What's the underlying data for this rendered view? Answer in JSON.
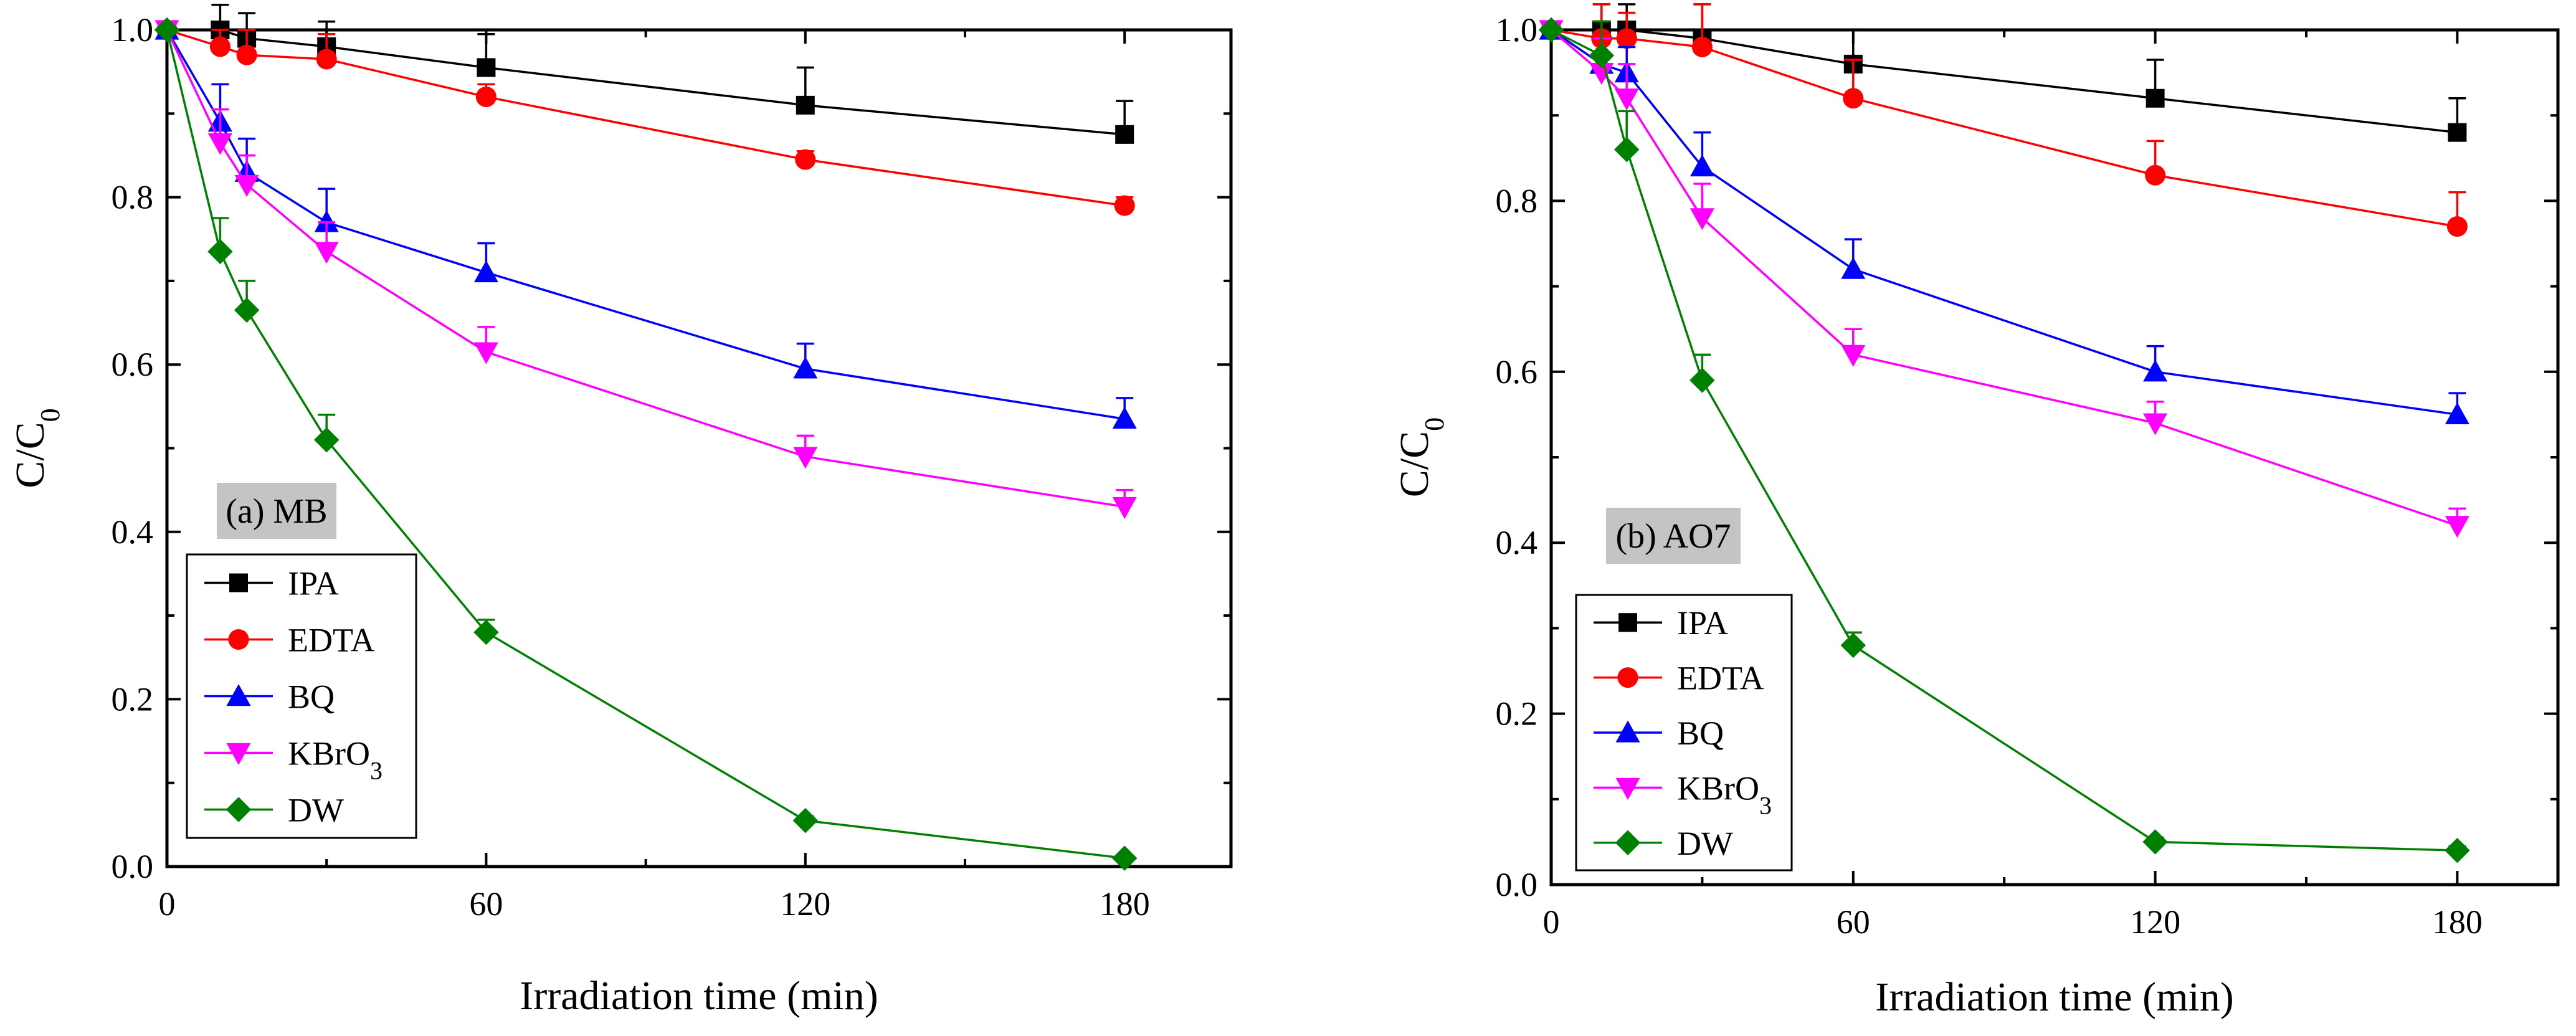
{
  "chart_data": [
    {
      "type": "line",
      "panel_label": "(a) MB",
      "xlabel": "Irradiation time (min)",
      "ylabel": "C/C",
      "ylabel_subscript": "0",
      "xlim": [
        0,
        200
      ],
      "ylim": [
        0,
        1.0
      ],
      "xticks": [
        0,
        60,
        120,
        180
      ],
      "yticks": [
        0.0,
        0.2,
        0.4,
        0.6,
        0.8,
        1.0
      ],
      "xtick_labels": [
        "0",
        "60",
        "120",
        "180"
      ],
      "ytick_labels": [
        "0.0",
        "0.2",
        "0.4",
        "0.6",
        "0.8",
        "1.0"
      ],
      "legend_position": "bottom-left",
      "x": [
        0,
        10,
        15,
        30,
        60,
        120,
        180
      ],
      "series": [
        {
          "name": "IPA",
          "color": "#000000",
          "marker": "square",
          "values": [
            1.0,
            1.0,
            0.99,
            0.98,
            0.955,
            0.91,
            0.875
          ],
          "errors": [
            0,
            0.03,
            0.03,
            0.03,
            0.04,
            0.045,
            0.04
          ]
        },
        {
          "name": "EDTA",
          "color": "#ff0000",
          "marker": "circle",
          "values": [
            1.0,
            0.98,
            0.97,
            0.965,
            0.92,
            0.845,
            0.79
          ],
          "errors": [
            0,
            0.02,
            0.03,
            0.03,
            0.015,
            0.01,
            0.01
          ]
        },
        {
          "name": "BQ",
          "color": "#0000ff",
          "marker": "triangle-up",
          "values": [
            1.0,
            0.89,
            0.83,
            0.77,
            0.71,
            0.595,
            0.535
          ],
          "errors": [
            0,
            0.045,
            0.04,
            0.04,
            0.035,
            0.03,
            0.025
          ]
        },
        {
          "name": "KBrO",
          "name_subscript": "3",
          "color": "#ff00ff",
          "marker": "triangle-down",
          "values": [
            1.0,
            0.865,
            0.815,
            0.735,
            0.615,
            0.49,
            0.43
          ],
          "errors": [
            0,
            0.04,
            0.035,
            0.035,
            0.03,
            0.025,
            0.02
          ]
        },
        {
          "name": "DW",
          "color": "#008000",
          "marker": "diamond",
          "values": [
            1.0,
            0.735,
            0.665,
            0.51,
            0.28,
            0.055,
            0.01
          ],
          "errors": [
            0,
            0.04,
            0.035,
            0.03,
            0.015,
            0.005,
            0.003
          ]
        }
      ]
    },
    {
      "type": "line",
      "panel_label": "(b) AO7",
      "xlabel": "Irradiation time (min)",
      "ylabel": "C/C",
      "ylabel_subscript": "0",
      "xlim": [
        0,
        200
      ],
      "ylim": [
        0,
        1.0
      ],
      "xticks": [
        0,
        60,
        120,
        180
      ],
      "yticks": [
        0.0,
        0.2,
        0.4,
        0.6,
        0.8,
        1.0
      ],
      "xtick_labels": [
        "0",
        "60",
        "120",
        "180"
      ],
      "ytick_labels": [
        "0.0",
        "0.2",
        "0.4",
        "0.6",
        "0.8",
        "1.0"
      ],
      "legend_position": "bottom-left",
      "x": [
        0,
        10,
        15,
        30,
        60,
        120,
        180
      ],
      "series": [
        {
          "name": "IPA",
          "color": "#000000",
          "marker": "square",
          "values": [
            1.0,
            1.0,
            1.0,
            0.99,
            0.96,
            0.92,
            0.88
          ],
          "errors": [
            0,
            0.03,
            0.03,
            0.04,
            0.04,
            0.045,
            0.04
          ]
        },
        {
          "name": "EDTA",
          "color": "#ff0000",
          "marker": "circle",
          "values": [
            1.0,
            0.99,
            0.99,
            0.98,
            0.92,
            0.83,
            0.77
          ],
          "errors": [
            0,
            0.04,
            0.03,
            0.05,
            0.045,
            0.04,
            0.04
          ]
        },
        {
          "name": "BQ",
          "color": "#0000ff",
          "marker": "triangle-up",
          "values": [
            1.0,
            0.96,
            0.95,
            0.84,
            0.72,
            0.6,
            0.55
          ],
          "errors": [
            0,
            0.03,
            0.03,
            0.04,
            0.035,
            0.03,
            0.025
          ]
        },
        {
          "name": "KBrO",
          "name_subscript": "3",
          "color": "#ff00ff",
          "marker": "triangle-down",
          "values": [
            1.0,
            0.95,
            0.92,
            0.78,
            0.62,
            0.54,
            0.42
          ],
          "errors": [
            0,
            0.04,
            0.04,
            0.04,
            0.03,
            0.025,
            0.02
          ]
        },
        {
          "name": "DW",
          "color": "#008000",
          "marker": "diamond",
          "values": [
            1.0,
            0.97,
            0.86,
            0.59,
            0.28,
            0.05,
            0.04
          ],
          "errors": [
            0,
            0.04,
            0.045,
            0.03,
            0.015,
            0.005,
            0.005
          ]
        }
      ]
    }
  ]
}
